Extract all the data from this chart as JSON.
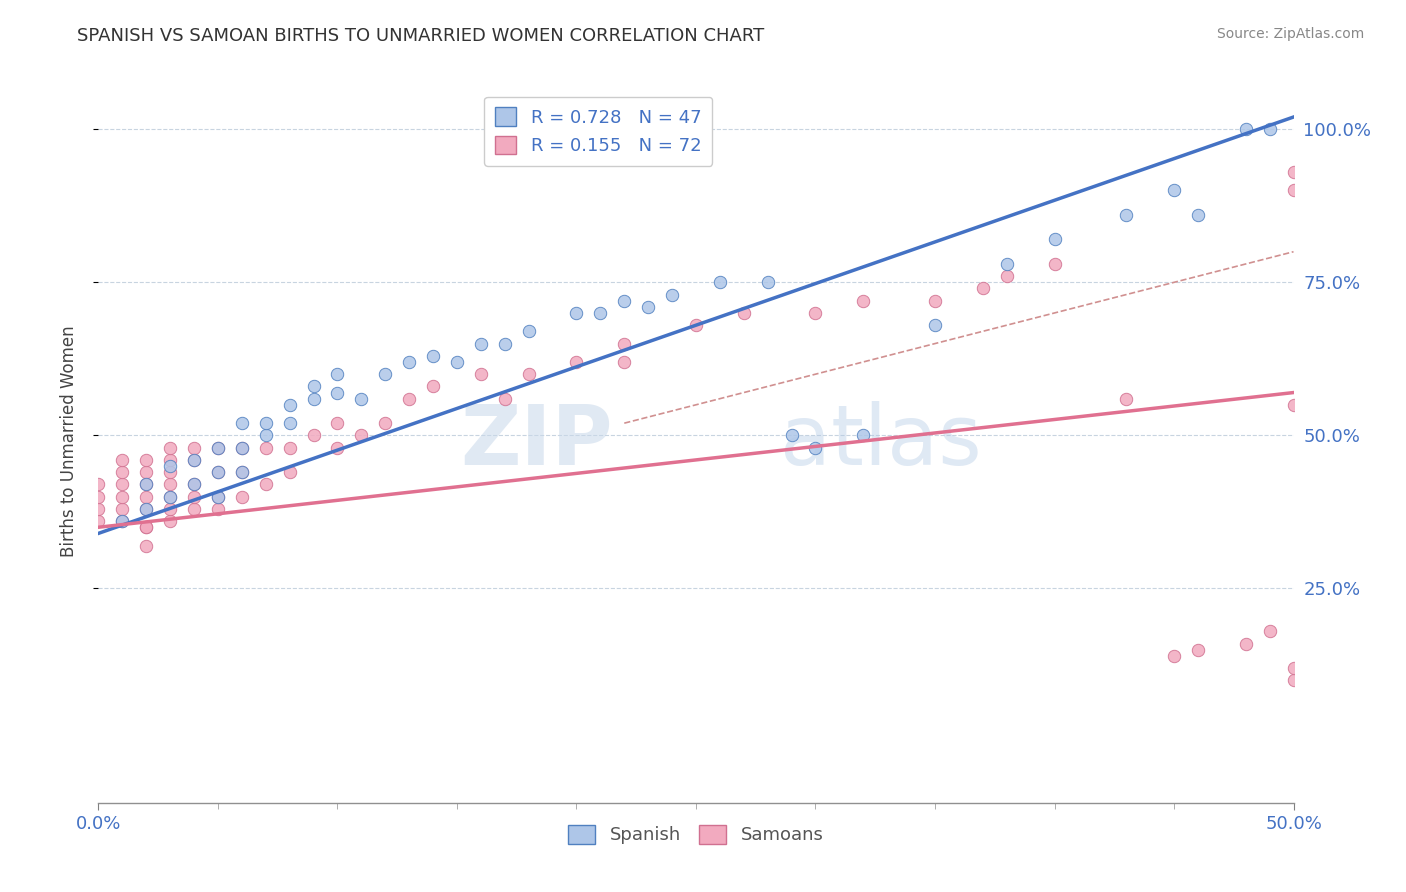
{
  "title": "SPANISH VS SAMOAN BIRTHS TO UNMARRIED WOMEN CORRELATION CHART",
  "source": "Source: ZipAtlas.com",
  "ylabel": "Births to Unmarried Women",
  "y_ticks": [
    0.25,
    0.5,
    0.75,
    1.0
  ],
  "y_tick_labels": [
    "25.0%",
    "50.0%",
    "75.0%",
    "100.0%"
  ],
  "x_lim": [
    0.0,
    0.5
  ],
  "y_lim": [
    -0.1,
    1.08
  ],
  "legend_r_spanish": "R = 0.728",
  "legend_n_spanish": "N = 47",
  "legend_r_samoan": "R = 0.155",
  "legend_n_samoan": "N = 72",
  "color_spanish": "#aec6e8",
  "color_samoan": "#f2aabf",
  "color_spanish_line": "#4472c4",
  "color_samoan_line": "#e07090",
  "color_diagonal": "#d08090",
  "watermark_zip": "ZIP",
  "watermark_atlas": "atlas",
  "spanish_x": [
    0.01,
    0.02,
    0.02,
    0.03,
    0.03,
    0.04,
    0.04,
    0.05,
    0.05,
    0.05,
    0.06,
    0.06,
    0.06,
    0.07,
    0.07,
    0.08,
    0.08,
    0.09,
    0.09,
    0.1,
    0.1,
    0.11,
    0.12,
    0.13,
    0.14,
    0.15,
    0.16,
    0.17,
    0.18,
    0.2,
    0.21,
    0.22,
    0.23,
    0.24,
    0.26,
    0.28,
    0.29,
    0.3,
    0.32,
    0.35,
    0.38,
    0.4,
    0.43,
    0.45,
    0.46,
    0.48,
    0.49
  ],
  "spanish_y": [
    0.36,
    0.38,
    0.42,
    0.4,
    0.45,
    0.42,
    0.46,
    0.4,
    0.44,
    0.48,
    0.44,
    0.48,
    0.52,
    0.5,
    0.52,
    0.52,
    0.55,
    0.56,
    0.58,
    0.57,
    0.6,
    0.56,
    0.6,
    0.62,
    0.63,
    0.62,
    0.65,
    0.65,
    0.67,
    0.7,
    0.7,
    0.72,
    0.71,
    0.73,
    0.75,
    0.75,
    0.5,
    0.48,
    0.5,
    0.68,
    0.78,
    0.82,
    0.86,
    0.9,
    0.86,
    1.0,
    1.0
  ],
  "samoan_x": [
    0.0,
    0.0,
    0.0,
    0.0,
    0.01,
    0.01,
    0.01,
    0.01,
    0.01,
    0.01,
    0.02,
    0.02,
    0.02,
    0.02,
    0.02,
    0.02,
    0.02,
    0.02,
    0.03,
    0.03,
    0.03,
    0.03,
    0.03,
    0.03,
    0.03,
    0.04,
    0.04,
    0.04,
    0.04,
    0.04,
    0.05,
    0.05,
    0.05,
    0.05,
    0.06,
    0.06,
    0.06,
    0.07,
    0.07,
    0.08,
    0.08,
    0.09,
    0.1,
    0.1,
    0.11,
    0.12,
    0.13,
    0.14,
    0.16,
    0.17,
    0.18,
    0.2,
    0.22,
    0.22,
    0.25,
    0.27,
    0.3,
    0.32,
    0.35,
    0.37,
    0.38,
    0.4,
    0.43,
    0.45,
    0.46,
    0.48,
    0.49,
    0.5,
    0.5,
    0.5,
    0.5,
    0.5
  ],
  "samoan_y": [
    0.36,
    0.38,
    0.4,
    0.42,
    0.36,
    0.38,
    0.4,
    0.42,
    0.44,
    0.46,
    0.35,
    0.38,
    0.4,
    0.42,
    0.44,
    0.46,
    0.32,
    0.35,
    0.36,
    0.38,
    0.4,
    0.42,
    0.44,
    0.46,
    0.48,
    0.38,
    0.4,
    0.42,
    0.46,
    0.48,
    0.38,
    0.4,
    0.44,
    0.48,
    0.4,
    0.44,
    0.48,
    0.42,
    0.48,
    0.44,
    0.48,
    0.5,
    0.48,
    0.52,
    0.5,
    0.52,
    0.56,
    0.58,
    0.6,
    0.56,
    0.6,
    0.62,
    0.62,
    0.65,
    0.68,
    0.7,
    0.7,
    0.72,
    0.72,
    0.74,
    0.76,
    0.78,
    0.56,
    0.14,
    0.15,
    0.16,
    0.18,
    0.55,
    0.9,
    0.93,
    0.1,
    0.12
  ],
  "blue_line_x": [
    0.0,
    0.5
  ],
  "blue_line_y": [
    0.34,
    1.02
  ],
  "pink_line_x": [
    0.0,
    0.5
  ],
  "pink_line_y": [
    0.35,
    0.57
  ],
  "dash_line_x": [
    0.22,
    0.5
  ],
  "dash_line_y": [
    0.52,
    0.8
  ]
}
